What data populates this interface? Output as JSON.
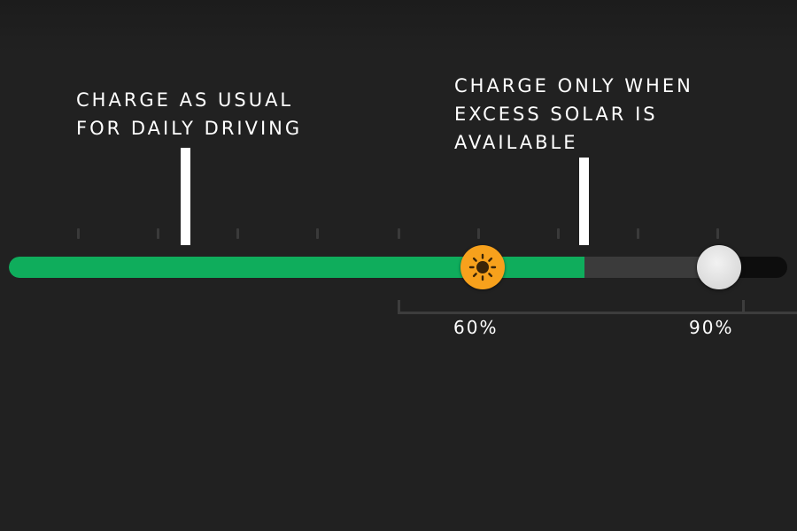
{
  "callouts": {
    "daily": {
      "lines": [
        "CHARGE AS USUAL",
        "FOR DAILY DRIVING"
      ]
    },
    "solar": {
      "lines": [
        "CHARGE ONLY WHEN",
        "EXCESS SOLAR IS",
        "AVAILABLE"
      ]
    }
  },
  "slider": {
    "current_charge_fraction": 0.74,
    "buffer_fraction": 0.9,
    "solar_threshold": {
      "label": "60%",
      "value": 60,
      "icon": "sun-icon"
    },
    "charge_limit": {
      "label": "90%",
      "value": 90
    }
  },
  "colors": {
    "background": "#212121",
    "fill": "#0fad5c",
    "solar_thumb": "#f7a11c",
    "limit_thumb": "#e2e2e2",
    "text": "#ffffff"
  }
}
